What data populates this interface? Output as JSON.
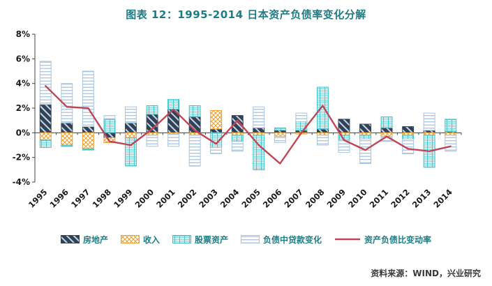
{
  "title": "图表 12：1995-2014 日本资产负债率变化分解",
  "source": "资料来源：WIND，兴业研究",
  "colors": {
    "title_teal": "#1e7d84",
    "axis": "#404040",
    "hatch_light": "#ccd6e3"
  },
  "chart_data": {
    "type": "bar",
    "stacked": true,
    "grid": false,
    "legend_position": "bottom",
    "title": "图表 12：1995-2014 日本资产负债率变化分解",
    "xlabel": "",
    "ylabel": "",
    "ylim": [
      -4,
      8
    ],
    "yticks": [
      8,
      6,
      4,
      2,
      0,
      -2,
      -4
    ],
    "ytick_suffix": "%",
    "categories": [
      1995,
      1996,
      1997,
      1998,
      1999,
      2000,
      2001,
      2002,
      2003,
      2004,
      2005,
      2006,
      2007,
      2008,
      2009,
      2010,
      2011,
      2012,
      2013,
      2014
    ],
    "series": [
      {
        "name": "房地产",
        "type": "bar",
        "pattern": "diagonal",
        "color": "#2f4257",
        "values": [
          2.3,
          0.8,
          0.5,
          -0.4,
          0.8,
          1.5,
          1.9,
          1.3,
          0.3,
          1.4,
          0.4,
          0.2,
          0.2,
          0.3,
          1.1,
          0.7,
          0.4,
          0.5,
          0.2,
          0.1
        ]
      },
      {
        "name": "收入",
        "type": "bar",
        "pattern": "cross",
        "color": "#efa02e",
        "values": [
          -0.6,
          -1.0,
          -1.3,
          -0.4,
          -0.4,
          -0.2,
          -0.1,
          -0.2,
          1.5,
          -0.2,
          -0.2,
          -0.3,
          -0.1,
          -0.2,
          -0.2,
          -0.2,
          -0.3,
          -0.2,
          -0.2,
          -0.2
        ]
      },
      {
        "name": "股票资产",
        "type": "bar",
        "pattern": "grid",
        "color": "#3fc3ca",
        "values": [
          -0.6,
          -0.1,
          -0.1,
          1.1,
          -2.3,
          0.7,
          0.8,
          0.9,
          -1.2,
          -0.5,
          -2.8,
          0.2,
          0.7,
          3.4,
          -0.4,
          -0.3,
          0.9,
          -0.3,
          -2.6,
          1.0
        ]
      },
      {
        "name": "负债中贷款变化",
        "type": "bar",
        "pattern": "horizontal",
        "color": "#a7c4df",
        "values": [
          3.5,
          3.2,
          4.5,
          0.3,
          1.3,
          -0.9,
          -1.0,
          -2.5,
          -0.5,
          -0.8,
          1.7,
          -0.5,
          0.7,
          -0.8,
          -1.0,
          -2.0,
          -0.4,
          -1.2,
          1.4,
          -1.3
        ]
      },
      {
        "name": "资产负债比变动率",
        "type": "line",
        "color": "#bf4557",
        "values": [
          3.8,
          2.1,
          2.0,
          -0.7,
          -1.0,
          0.3,
          1.9,
          0.2,
          -0.9,
          1.0,
          -1.0,
          -2.5,
          0.0,
          2.2,
          -0.6,
          -1.4,
          -0.3,
          -1.3,
          -1.5,
          -1.1
        ]
      }
    ]
  }
}
